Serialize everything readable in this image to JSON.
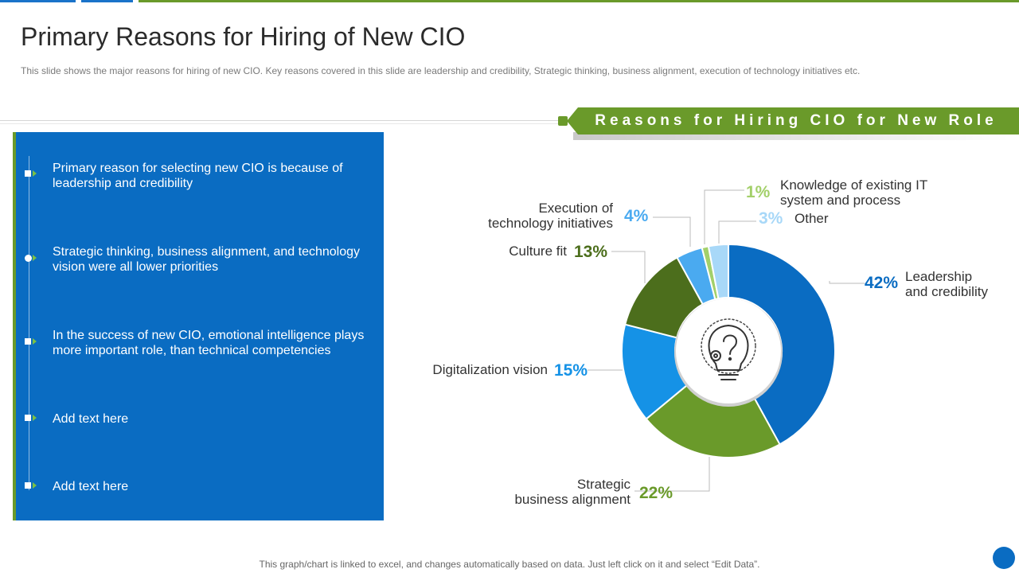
{
  "header": {
    "title": "Primary Reasons for Hiring of New CIO",
    "subtitle": "This slide shows the major reasons for hiring of new CIO. Key reasons covered  in this slide are leadership and credibility, Strategic thinking, business alignment, execution of technology initiatives etc."
  },
  "banner": {
    "label": "Reasons for Hiring CIO for New Role"
  },
  "panel": {
    "items": [
      {
        "text": "Primary reason for selecting new CIO is because of leadership and credibility"
      },
      {
        "text": "Strategic thinking, business alignment, and technology vision were all lower priorities"
      },
      {
        "text": "In the success of new CIO, emotional intelligence plays more important role, than technical competencies"
      },
      {
        "text": "Add text here"
      },
      {
        "text": "Add text here"
      }
    ]
  },
  "footer": {
    "note": "This graph/chart is linked to excel,  and changes automatically based on data. Just left click on it and select “Edit Data”."
  },
  "colors": {
    "green": "#6a9a2a",
    "blue": "#0a6cc2",
    "top_bar_blue": "#1a73c9"
  },
  "chart_data": {
    "type": "pie",
    "variant": "donut",
    "title": "Reasons for Hiring CIO for New Role",
    "center_icon": "lightbulb-question-icon",
    "slices": [
      {
        "label": "Leadership and credibility",
        "lines": [
          "Leadership",
          "and credibility"
        ],
        "value": 42,
        "display": "42%",
        "color": "#0a6cc2",
        "label_color": "#0a6cc2"
      },
      {
        "label": "Strategic business alignment",
        "lines": [
          "Strategic",
          "business alignment"
        ],
        "value": 22,
        "display": "22%",
        "color": "#6a9a2a",
        "label_color": "#6a9a2a"
      },
      {
        "label": "Digitalization vision",
        "lines": [
          "Digitalization vision"
        ],
        "value": 15,
        "display": "15%",
        "color": "#1592e6",
        "label_color": "#1592e6"
      },
      {
        "label": "Culture fit",
        "lines": [
          "Culture fit"
        ],
        "value": 13,
        "display": "13%",
        "color": "#4c6e1c",
        "label_color": "#4c6e1c"
      },
      {
        "label": "Execution of technology initiatives",
        "lines": [
          "Execution of",
          "technology initiatives"
        ],
        "value": 4,
        "display": "4%",
        "color": "#4aaaf0",
        "label_color": "#4aaaf0"
      },
      {
        "label": "Knowledge of existing IT system and process",
        "lines": [
          "Knowledge of existing IT",
          "system and process"
        ],
        "value": 1,
        "display": "1%",
        "color": "#a3d06a",
        "label_color": "#a3d06a"
      },
      {
        "label": "Other",
        "lines": [
          "Other"
        ],
        "value": 3,
        "display": "3%",
        "color": "#a8d8f8",
        "label_color": "#a8d8f8"
      }
    ]
  }
}
